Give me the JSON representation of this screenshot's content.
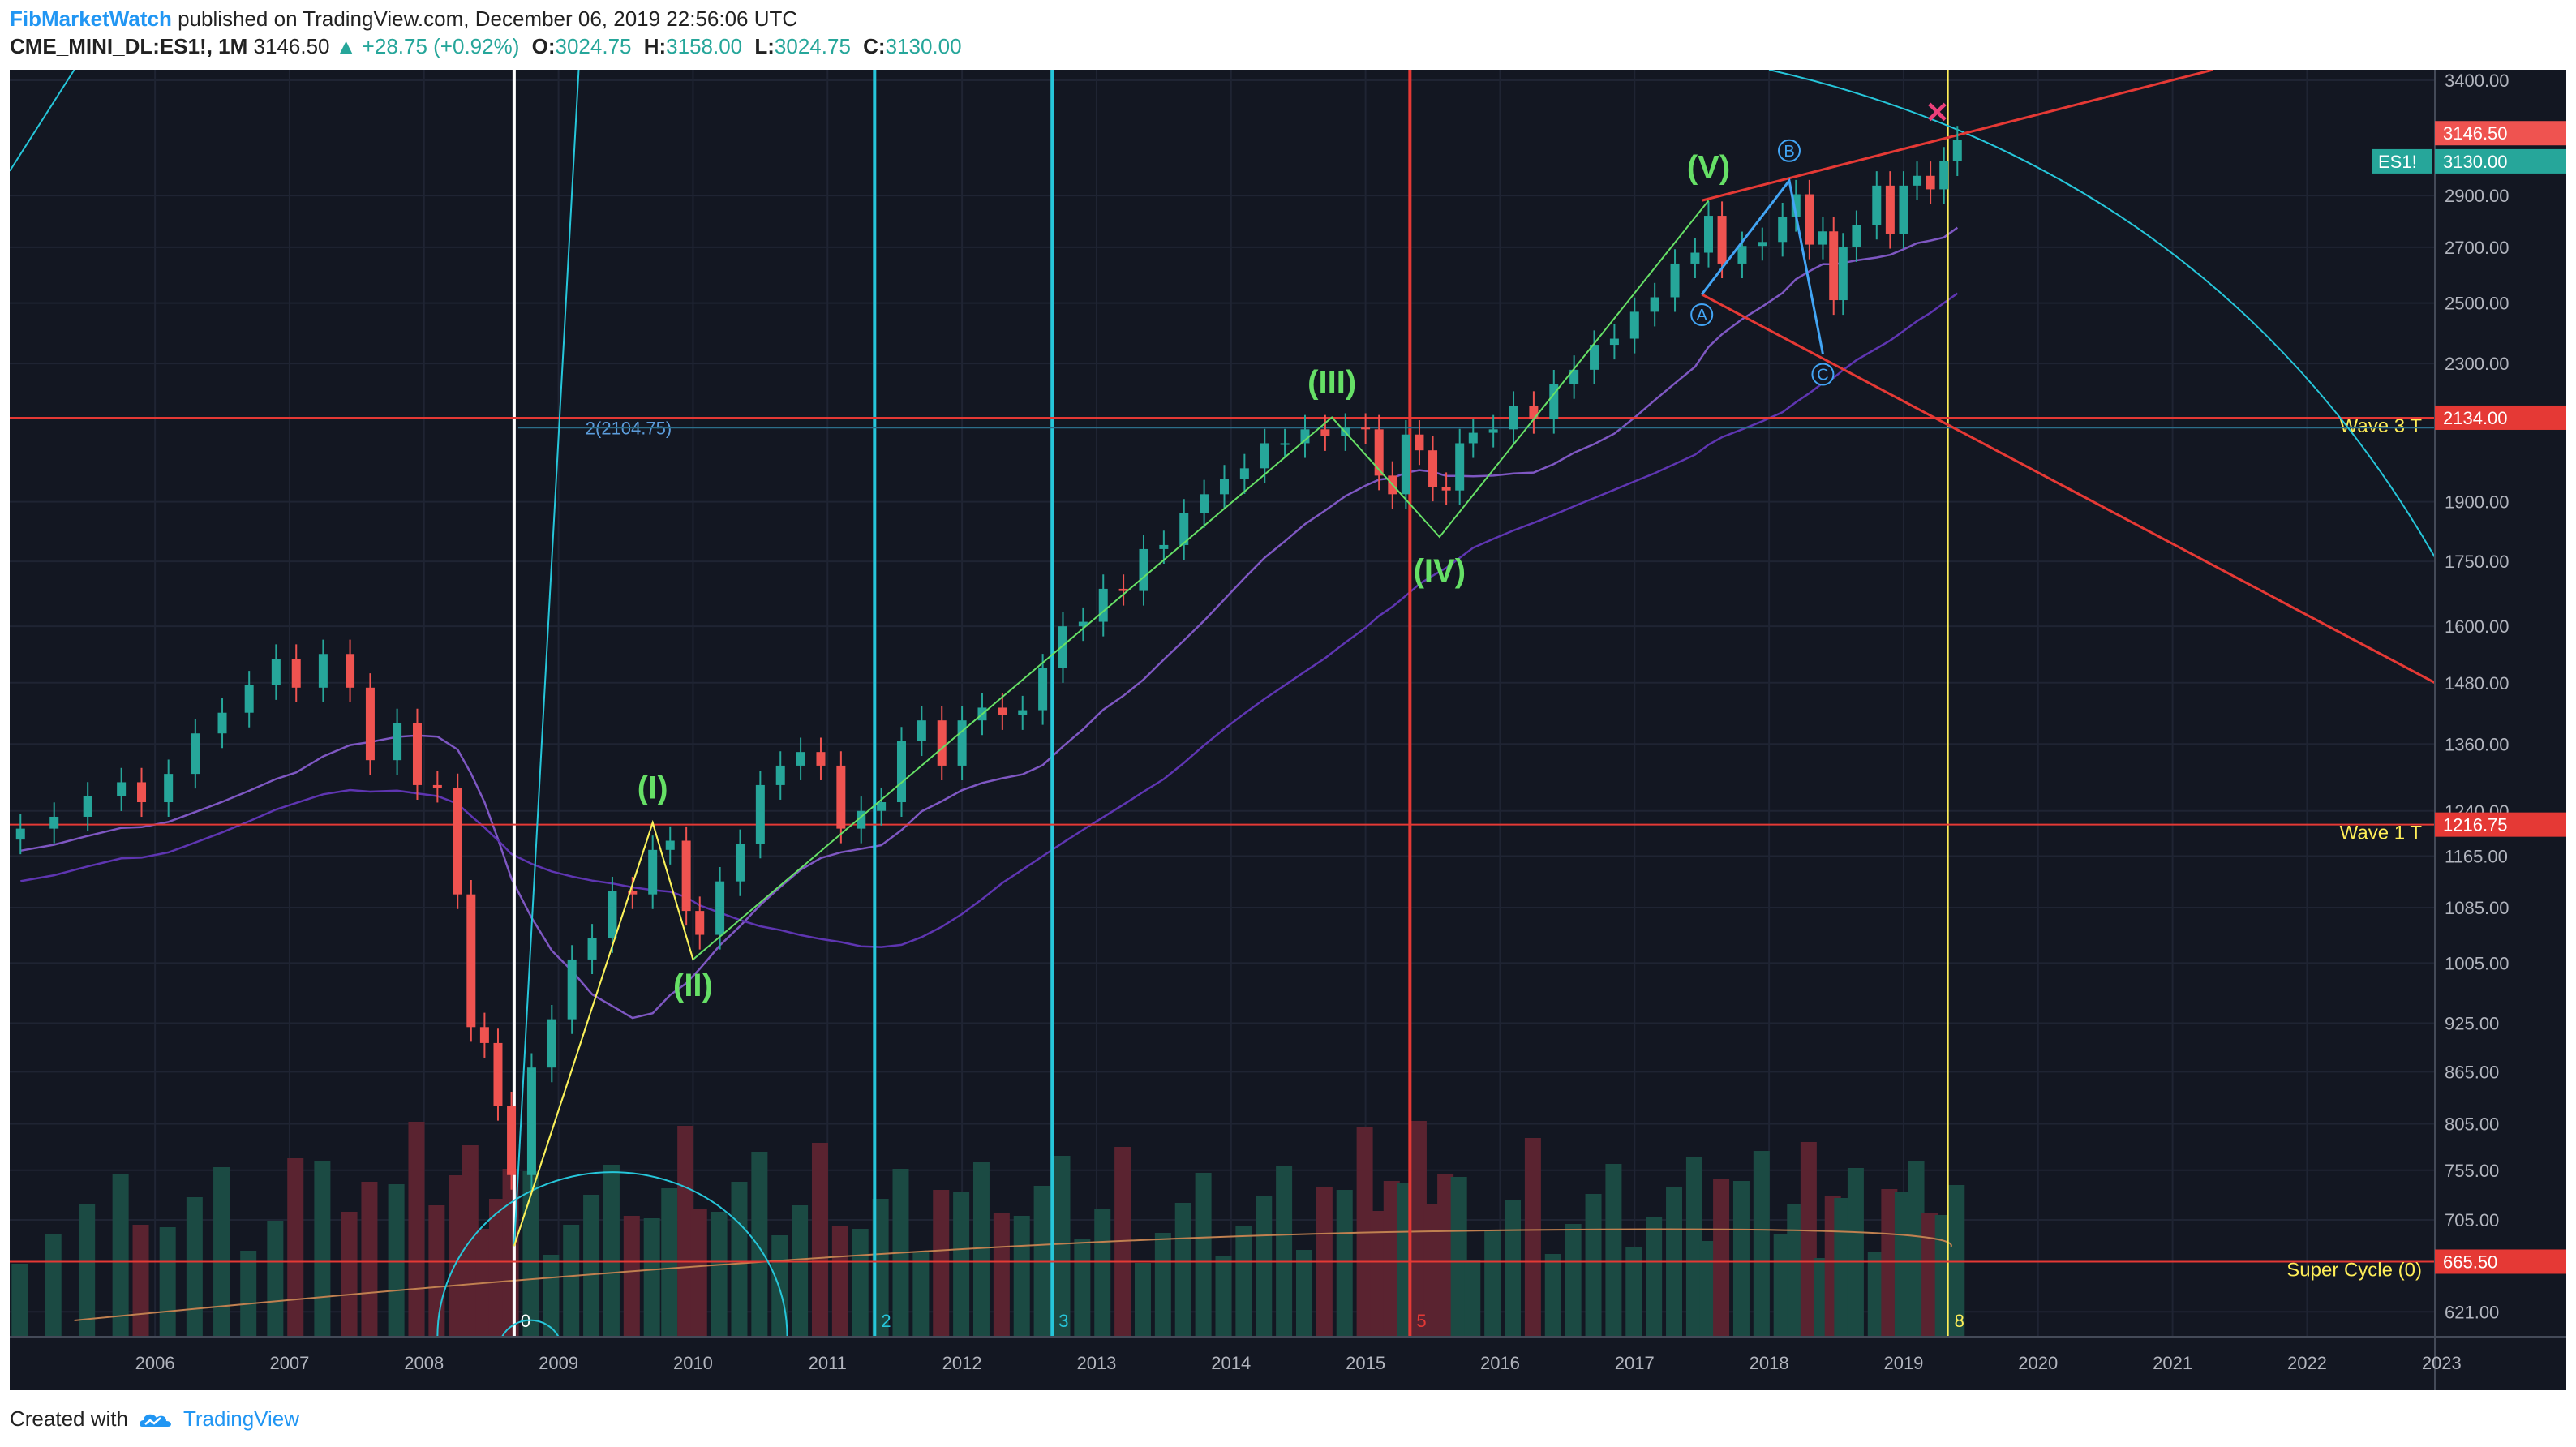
{
  "header": {
    "author": "FibMarketWatch",
    "published_text": "published on TradingView.com, December 06, 2019 22:56:06 UTC",
    "symbol": "CME_MINI_DL:ES1!, 1M",
    "last": "3146.50",
    "change": "▲ +28.75 (+0.92%)",
    "open_label": "O:",
    "open": "3024.75",
    "high_label": "H:",
    "high": "3158.00",
    "low_label": "L:",
    "low": "3024.75",
    "close_label": "C:",
    "close": "3130.00"
  },
  "footer": {
    "created_with": "Created with",
    "brand": "TradingView"
  },
  "colors": {
    "background": "#131722",
    "up": "#26a69a",
    "down": "#ef5350",
    "cyan": "#26c6da",
    "red_line": "#e53935",
    "green_wave": "#66e066",
    "blue_wave": "#42a5f5",
    "yellow": "#ffee58"
  },
  "chart_data": {
    "type": "candlestick",
    "title": "CME_MINI_DL:ES1!, 1M",
    "scale": "log",
    "y_ticks": [
      "3400.00",
      "2900.00",
      "2700.00",
      "2500.00",
      "2300.00",
      "2134.00",
      "1900.00",
      "1750.00",
      "1600.00",
      "1480.00",
      "1360.00",
      "1240.00",
      "1165.00",
      "1085.00",
      "1005.00",
      "925.00",
      "865.00",
      "805.00",
      "755.00",
      "705.00",
      "665.50",
      "621.00"
    ],
    "x_ticks": [
      "2006",
      "2007",
      "2008",
      "2009",
      "2010",
      "2011",
      "2012",
      "2013",
      "2014",
      "2015",
      "2016",
      "2017",
      "2018",
      "2019",
      "2020",
      "2021",
      "2022",
      "2023"
    ],
    "ylim": [
      600,
      3450
    ],
    "xlim": [
      2005.42,
      2023.45
    ],
    "series": [
      {
        "name": "ES1!",
        "style": "candles",
        "points": [
          [
            2005.5,
            1210
          ],
          [
            2005.75,
            1230
          ],
          [
            2006.0,
            1265
          ],
          [
            2006.25,
            1290
          ],
          [
            2006.4,
            1255
          ],
          [
            2006.6,
            1305
          ],
          [
            2006.8,
            1380
          ],
          [
            2007.0,
            1420
          ],
          [
            2007.2,
            1475
          ],
          [
            2007.4,
            1530
          ],
          [
            2007.55,
            1470
          ],
          [
            2007.75,
            1540
          ],
          [
            2007.95,
            1470
          ],
          [
            2008.1,
            1330
          ],
          [
            2008.3,
            1400
          ],
          [
            2008.45,
            1285
          ],
          [
            2008.6,
            1280
          ],
          [
            2008.75,
            1105
          ],
          [
            2008.85,
            920
          ],
          [
            2008.95,
            900
          ],
          [
            2009.05,
            825
          ],
          [
            2009.15,
            750
          ],
          [
            2009.3,
            870
          ],
          [
            2009.45,
            930
          ],
          [
            2009.6,
            1010
          ],
          [
            2009.75,
            1040
          ],
          [
            2009.9,
            1110
          ],
          [
            2010.05,
            1105
          ],
          [
            2010.2,
            1175
          ],
          [
            2010.33,
            1190
          ],
          [
            2010.45,
            1080
          ],
          [
            2010.55,
            1045
          ],
          [
            2010.7,
            1125
          ],
          [
            2010.85,
            1185
          ],
          [
            2011.0,
            1285
          ],
          [
            2011.15,
            1320
          ],
          [
            2011.3,
            1345
          ],
          [
            2011.45,
            1320
          ],
          [
            2011.6,
            1210
          ],
          [
            2011.75,
            1240
          ],
          [
            2011.9,
            1255
          ],
          [
            2012.05,
            1365
          ],
          [
            2012.2,
            1405
          ],
          [
            2012.35,
            1320
          ],
          [
            2012.5,
            1405
          ],
          [
            2012.65,
            1430
          ],
          [
            2012.8,
            1415
          ],
          [
            2012.95,
            1425
          ],
          [
            2013.1,
            1510
          ],
          [
            2013.25,
            1600
          ],
          [
            2013.4,
            1610
          ],
          [
            2013.55,
            1685
          ],
          [
            2013.7,
            1680
          ],
          [
            2013.85,
            1780
          ],
          [
            2014.0,
            1790
          ],
          [
            2014.15,
            1870
          ],
          [
            2014.3,
            1920
          ],
          [
            2014.45,
            1960
          ],
          [
            2014.6,
            1990
          ],
          [
            2014.75,
            2060
          ],
          [
            2014.9,
            2060
          ],
          [
            2015.05,
            2100
          ],
          [
            2015.2,
            2080
          ],
          [
            2015.35,
            2105
          ],
          [
            2015.5,
            2100
          ],
          [
            2015.6,
            1970
          ],
          [
            2015.7,
            1920
          ],
          [
            2015.8,
            2085
          ],
          [
            2015.9,
            2040
          ],
          [
            2016.0,
            1940
          ],
          [
            2016.1,
            1930
          ],
          [
            2016.2,
            2060
          ],
          [
            2016.3,
            2090
          ],
          [
            2016.45,
            2100
          ],
          [
            2016.6,
            2170
          ],
          [
            2016.75,
            2130
          ],
          [
            2016.9,
            2235
          ],
          [
            2017.05,
            2280
          ],
          [
            2017.2,
            2360
          ],
          [
            2017.35,
            2380
          ],
          [
            2017.5,
            2470
          ],
          [
            2017.65,
            2520
          ],
          [
            2017.8,
            2640
          ],
          [
            2017.95,
            2680
          ],
          [
            2018.05,
            2820
          ],
          [
            2018.15,
            2640
          ],
          [
            2018.3,
            2705
          ],
          [
            2018.45,
            2720
          ],
          [
            2018.6,
            2815
          ],
          [
            2018.7,
            2905
          ],
          [
            2018.8,
            2710
          ],
          [
            2018.9,
            2760
          ],
          [
            2018.98,
            2510
          ],
          [
            2019.05,
            2700
          ],
          [
            2019.15,
            2785
          ],
          [
            2019.3,
            2940
          ],
          [
            2019.4,
            2750
          ],
          [
            2019.5,
            2940
          ],
          [
            2019.6,
            2980
          ],
          [
            2019.7,
            2925
          ],
          [
            2019.8,
            3040
          ],
          [
            2019.9,
            3130
          ]
        ]
      },
      {
        "name": "Volume",
        "style": "histogram"
      },
      {
        "name": "Moving average 1",
        "style": "line"
      },
      {
        "name": "Moving average 2",
        "style": "line"
      }
    ],
    "horizontal_levels": [
      {
        "label": "Super Cycle (0)",
        "value": 665.5,
        "price_tag": "665.50"
      },
      {
        "label": "Wave 1 T",
        "value": 1216.75,
        "price_tag": "1216.75"
      },
      {
        "label": "Wave 3 T",
        "value": 2134.0,
        "price_tag": "2134.00"
      }
    ],
    "price_tags": [
      {
        "text": "3146.50",
        "value": 3146.5
      },
      {
        "text": "3130.00",
        "value": 3130.0,
        "prefix": "ES1!"
      }
    ],
    "fib_label": "2(2104.75)",
    "vertical_lines": [
      {
        "label": "0",
        "x": 2009.17
      },
      {
        "label": "2",
        "x": 2011.85
      },
      {
        "label": "3",
        "x": 2013.17
      },
      {
        "label": "5",
        "x": 2015.83
      },
      {
        "label": "8",
        "x": 2019.83
      }
    ],
    "waves_primary": [
      {
        "label": "(I)",
        "x": 2010.2,
        "y": 1220
      },
      {
        "label": "(II)",
        "x": 2010.5,
        "y": 1010
      },
      {
        "label": "(III)",
        "x": 2015.25,
        "y": 2135
      },
      {
        "label": "(IV)",
        "x": 2016.05,
        "y": 1810
      },
      {
        "label": "(V)",
        "x": 2018.05,
        "y": 2880
      }
    ],
    "waves_correction": [
      {
        "label": "A",
        "x": 2018.0,
        "y": 2530
      },
      {
        "label": "B",
        "x": 2018.65,
        "y": 2960
      },
      {
        "label": "C",
        "x": 2018.9,
        "y": 2330
      }
    ],
    "target_marker": "✕"
  }
}
